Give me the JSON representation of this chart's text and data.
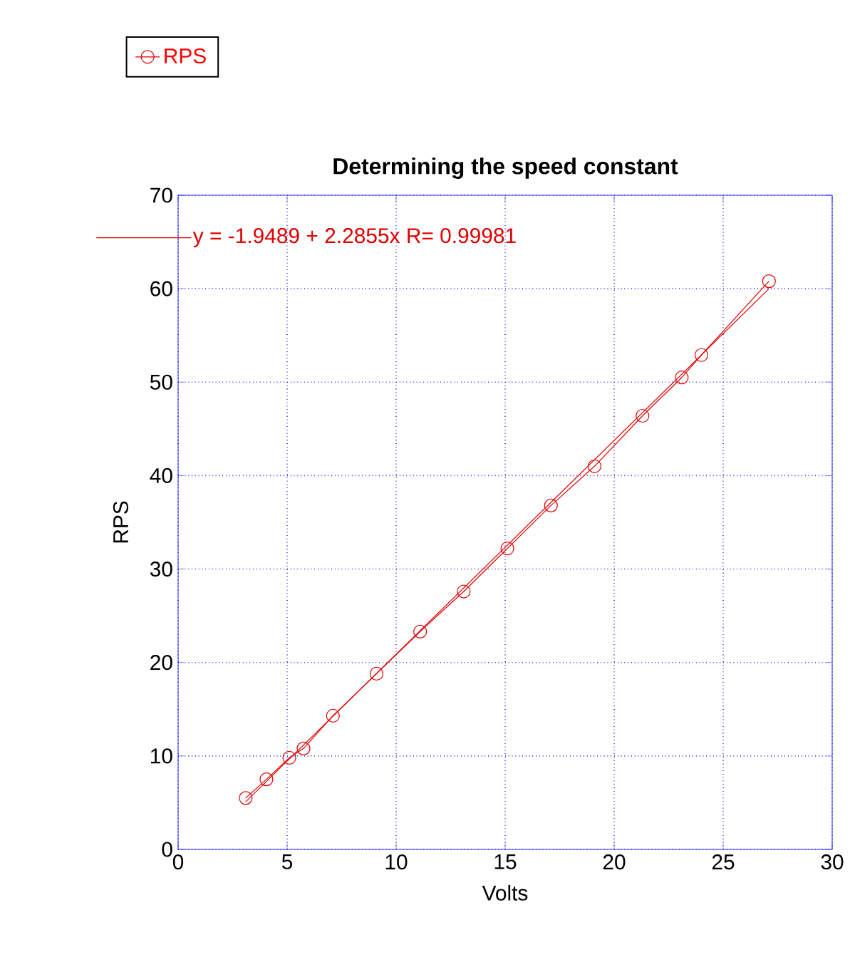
{
  "chart_data": {
    "type": "line",
    "title": "Determining the speed constant",
    "xlabel": "Volts",
    "ylabel": "RPS",
    "series": [
      {
        "name": "RPS",
        "color": "#e00000",
        "marker": "circle",
        "x": [
          3.1,
          4.05,
          5.1,
          5.75,
          7.1,
          9.1,
          11.1,
          13.1,
          15.1,
          17.1,
          19.1,
          21.3,
          23.1,
          24.0,
          27.1
        ],
        "values": [
          5.5,
          7.5,
          9.8,
          10.8,
          14.3,
          18.8,
          23.3,
          27.6,
          32.2,
          36.8,
          41.0,
          46.4,
          50.5,
          52.9,
          60.8
        ]
      },
      {
        "name": "y = -1.9489 + 2.2855x   R= 0.99981",
        "color": "#e00000",
        "marker": "none",
        "x": [
          3.1,
          27.1
        ],
        "values": [
          5.1,
          60.0
        ]
      }
    ],
    "xlim": [
      0,
      30
    ],
    "ylim": [
      0,
      70
    ],
    "xticks": [
      0,
      5,
      10,
      15,
      20,
      25,
      30
    ],
    "yticks": [
      0,
      10,
      20,
      30,
      40,
      50,
      60,
      70
    ],
    "grid": true,
    "legend": "top left",
    "line_style": "solid"
  }
}
